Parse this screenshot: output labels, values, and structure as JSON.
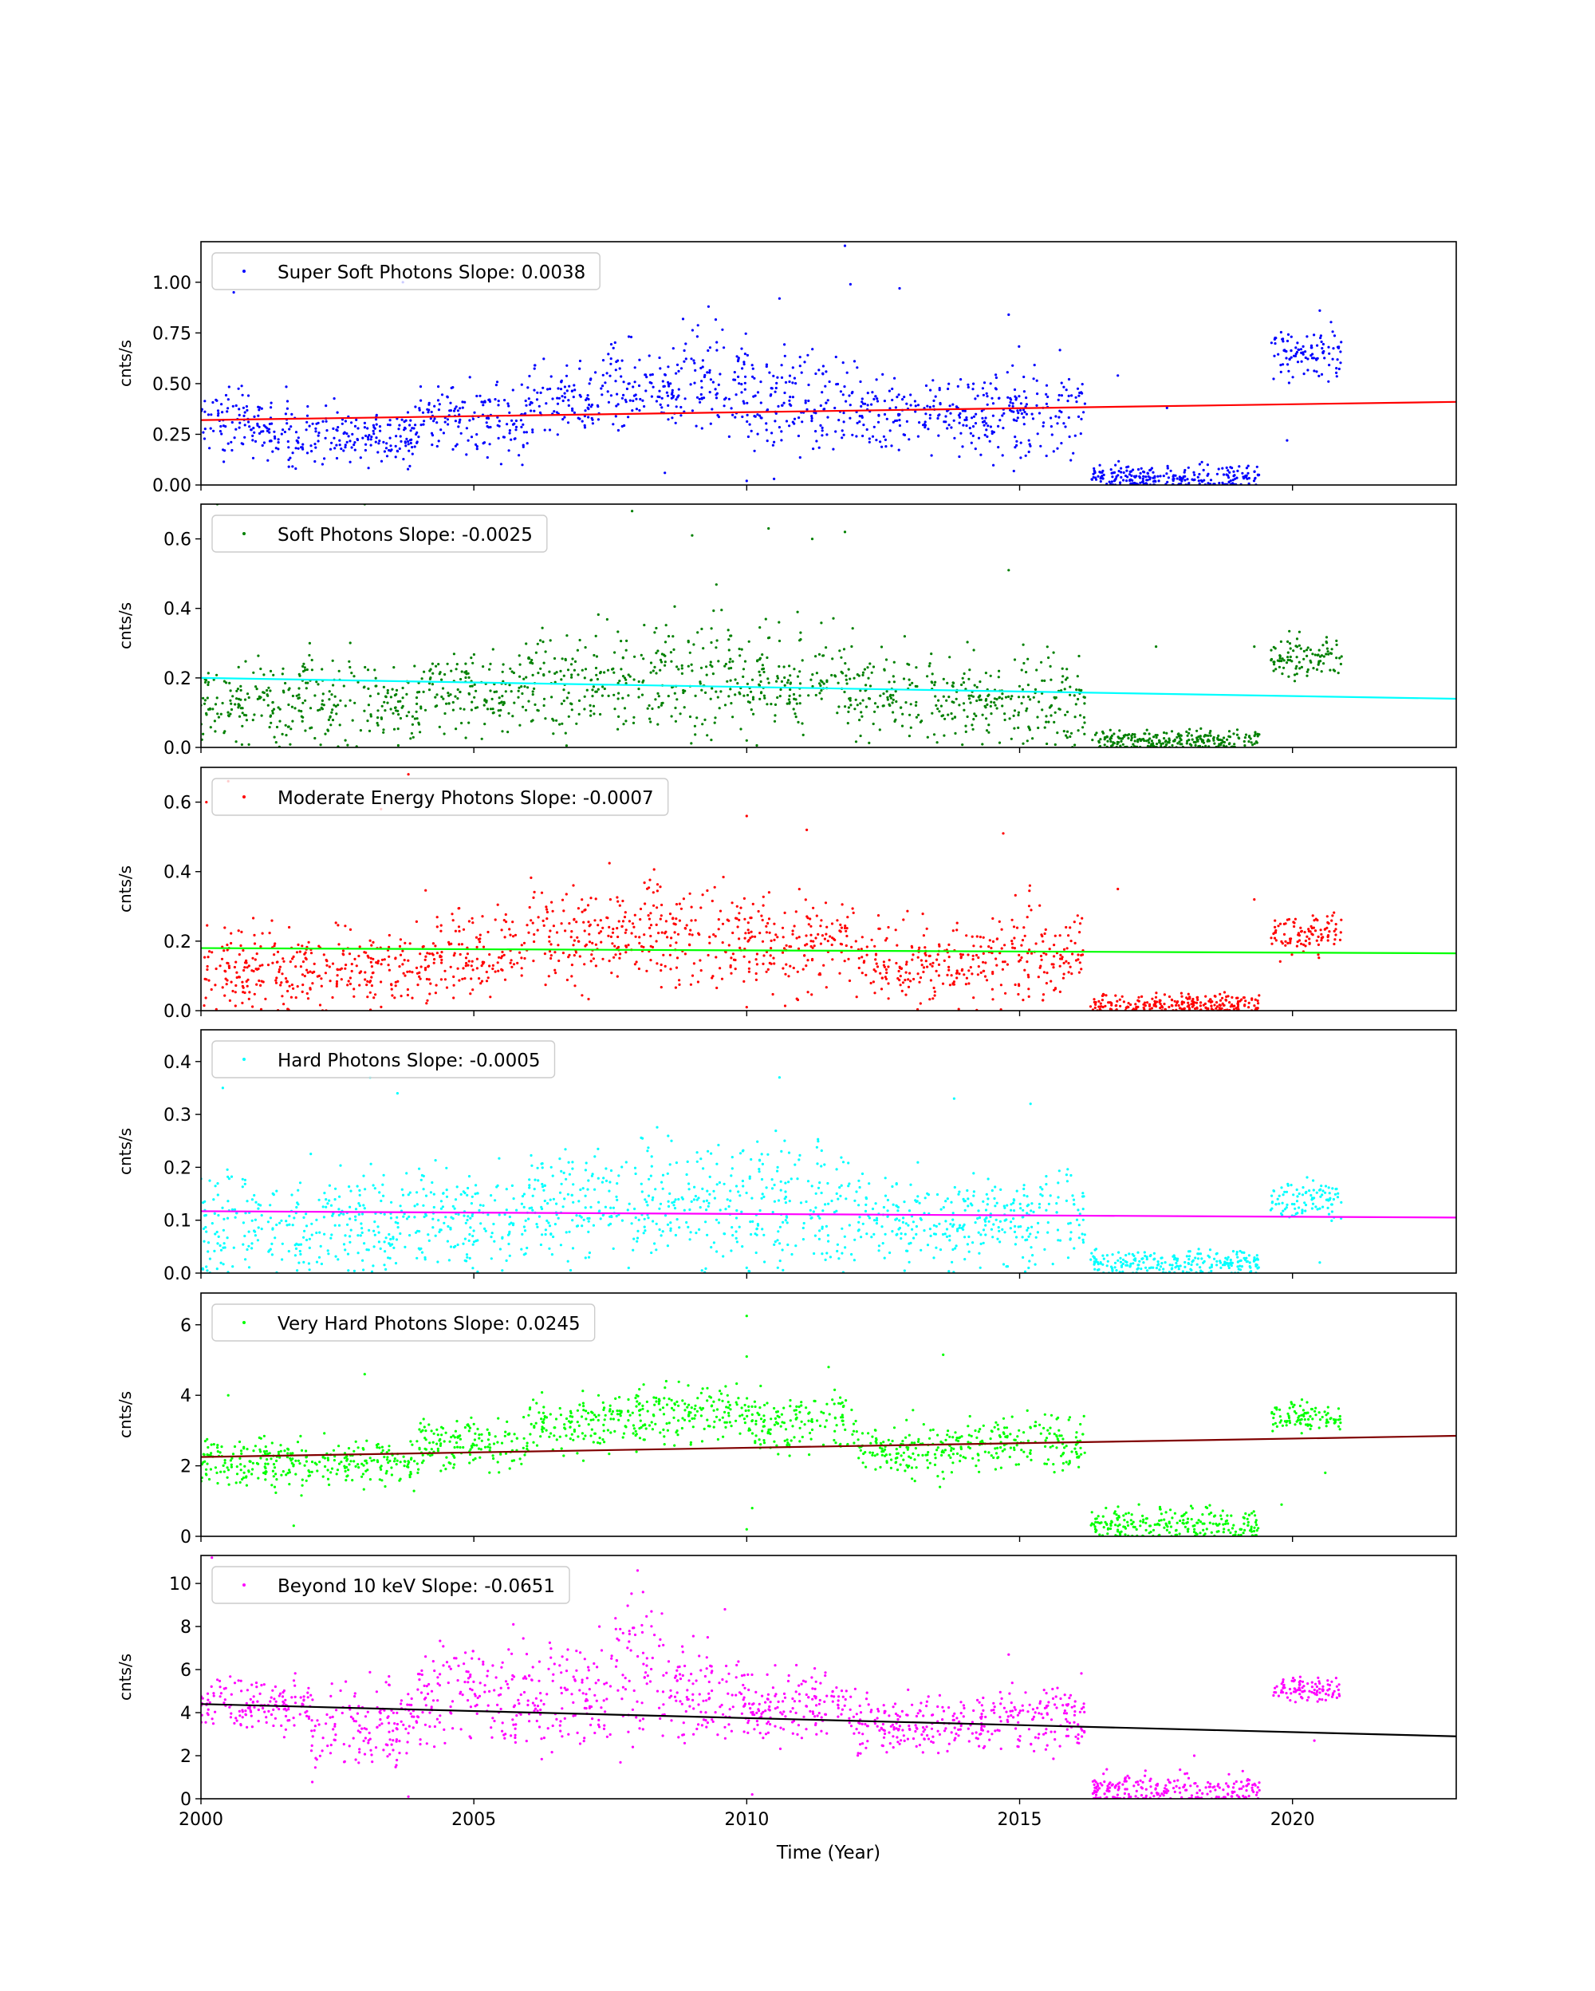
{
  "figure": {
    "xlabel": "Time (Year)",
    "x_ticks": [
      2000,
      2005,
      2010,
      2015,
      2020
    ],
    "xlim": [
      2000,
      2023
    ]
  },
  "chart_data": [
    {
      "type": "scatter",
      "legend": "Super Soft Photons Slope: 0.0038",
      "ylabel": "cnts/s",
      "ylim": [
        0,
        1.2
      ],
      "y_ticks": [
        "0.00",
        "0.25",
        "0.50",
        "0.75",
        "1.00"
      ],
      "point_color": "#0000ff",
      "fit_color": "#ff0000",
      "fit": {
        "x": [
          2000,
          2023
        ],
        "y": [
          0.32,
          0.41
        ]
      },
      "clusters": [
        {
          "x": [
            2000.0,
            2001.6
          ],
          "center": 0.3,
          "spread": 0.08
        },
        {
          "x": [
            2001.6,
            2004.0
          ],
          "center": 0.24,
          "spread": 0.07
        },
        {
          "x": [
            2004.0,
            2006.0
          ],
          "center": 0.33,
          "spread": 0.09
        },
        {
          "x": [
            2006.0,
            2007.2
          ],
          "center": 0.4,
          "spread": 0.09
        },
        {
          "x": [
            2007.2,
            2008.8
          ],
          "center": 0.48,
          "spread": 0.1
        },
        {
          "x": [
            2008.8,
            2010.0
          ],
          "center": 0.52,
          "spread": 0.12
        },
        {
          "x": [
            2010.0,
            2012.0
          ],
          "center": 0.42,
          "spread": 0.12
        },
        {
          "x": [
            2012.0,
            2014.5
          ],
          "center": 0.35,
          "spread": 0.1
        },
        {
          "x": [
            2014.5,
            2016.2
          ],
          "center": 0.36,
          "spread": 0.11
        },
        {
          "x": [
            2016.3,
            2019.4
          ],
          "center": 0.04,
          "spread": 0.03
        },
        {
          "x": [
            2019.6,
            2020.9
          ],
          "center": 0.63,
          "spread": 0.07
        }
      ],
      "outliers": [
        {
          "x": 2000.6,
          "y": 0.95
        },
        {
          "x": 2003.7,
          "y": 1.0
        },
        {
          "x": 2011.8,
          "y": 1.18
        },
        {
          "x": 2011.9,
          "y": 0.99
        },
        {
          "x": 2009.3,
          "y": 0.88
        },
        {
          "x": 2014.8,
          "y": 0.84
        },
        {
          "x": 2010.6,
          "y": 0.92
        },
        {
          "x": 2012.8,
          "y": 0.97
        },
        {
          "x": 2016.8,
          "y": 0.54
        },
        {
          "x": 2017.7,
          "y": 0.38
        },
        {
          "x": 2010.0,
          "y": 0.02
        },
        {
          "x": 2010.5,
          "y": 0.03
        },
        {
          "x": 2020.5,
          "y": 0.86
        },
        {
          "x": 2019.9,
          "y": 0.22
        },
        {
          "x": 2008.5,
          "y": 0.06
        }
      ]
    },
    {
      "type": "scatter",
      "legend": "Soft Photons Slope: -0.0025",
      "ylabel": "cnts/s",
      "ylim": [
        0,
        0.7
      ],
      "y_ticks": [
        "0.0",
        "0.2",
        "0.4",
        "0.6"
      ],
      "point_color": "#008000",
      "fit_color": "#00ffff",
      "fit": {
        "x": [
          2000,
          2023
        ],
        "y": [
          0.2,
          0.14
        ]
      },
      "clusters": [
        {
          "x": [
            2000.0,
            2004.0
          ],
          "center": 0.13,
          "spread": 0.06
        },
        {
          "x": [
            2004.0,
            2006.0
          ],
          "center": 0.16,
          "spread": 0.06
        },
        {
          "x": [
            2006.0,
            2008.0
          ],
          "center": 0.19,
          "spread": 0.07
        },
        {
          "x": [
            2008.0,
            2010.0
          ],
          "center": 0.21,
          "spread": 0.09
        },
        {
          "x": [
            2010.0,
            2012.0
          ],
          "center": 0.19,
          "spread": 0.08
        },
        {
          "x": [
            2012.0,
            2014.5
          ],
          "center": 0.14,
          "spread": 0.06
        },
        {
          "x": [
            2014.5,
            2016.2
          ],
          "center": 0.14,
          "spread": 0.07
        },
        {
          "x": [
            2016.3,
            2019.4
          ],
          "center": 0.02,
          "spread": 0.015
        },
        {
          "x": [
            2019.6,
            2020.9
          ],
          "center": 0.26,
          "spread": 0.03
        }
      ],
      "outliers": [
        {
          "x": 2000.3,
          "y": 0.7
        },
        {
          "x": 2003.0,
          "y": 0.7
        },
        {
          "x": 2007.9,
          "y": 0.68
        },
        {
          "x": 2009.0,
          "y": 0.61
        },
        {
          "x": 2010.4,
          "y": 0.63
        },
        {
          "x": 2011.2,
          "y": 0.6
        },
        {
          "x": 2011.8,
          "y": 0.62
        },
        {
          "x": 2014.8,
          "y": 0.51
        },
        {
          "x": 2017.5,
          "y": 0.29
        },
        {
          "x": 2019.3,
          "y": 0.29
        },
        {
          "x": 2010.0,
          "y": 0.02
        }
      ]
    },
    {
      "type": "scatter",
      "legend": "Moderate Energy Photons Slope: -0.0007",
      "ylabel": "cnts/s",
      "ylim": [
        0,
        0.7
      ],
      "y_ticks": [
        "0.0",
        "0.2",
        "0.4",
        "0.6"
      ],
      "point_color": "#ff0000",
      "fit_color": "#00ff00",
      "fit": {
        "x": [
          2000,
          2023
        ],
        "y": [
          0.18,
          0.165
        ]
      },
      "clusters": [
        {
          "x": [
            2000.0,
            2004.0
          ],
          "center": 0.12,
          "spread": 0.06
        },
        {
          "x": [
            2004.0,
            2006.0
          ],
          "center": 0.17,
          "spread": 0.06
        },
        {
          "x": [
            2006.0,
            2008.0
          ],
          "center": 0.21,
          "spread": 0.07
        },
        {
          "x": [
            2008.0,
            2010.0
          ],
          "center": 0.22,
          "spread": 0.08
        },
        {
          "x": [
            2010.0,
            2012.0
          ],
          "center": 0.19,
          "spread": 0.07
        },
        {
          "x": [
            2012.0,
            2014.5
          ],
          "center": 0.14,
          "spread": 0.06
        },
        {
          "x": [
            2014.5,
            2016.2
          ],
          "center": 0.16,
          "spread": 0.07
        },
        {
          "x": [
            2016.3,
            2019.4
          ],
          "center": 0.02,
          "spread": 0.015
        },
        {
          "x": [
            2019.6,
            2020.9
          ],
          "center": 0.22,
          "spread": 0.03
        }
      ],
      "outliers": [
        {
          "x": 2000.5,
          "y": 0.66
        },
        {
          "x": 2000.1,
          "y": 0.6
        },
        {
          "x": 2003.8,
          "y": 0.68
        },
        {
          "x": 2003.3,
          "y": 0.58
        },
        {
          "x": 2010.0,
          "y": 0.56
        },
        {
          "x": 2011.1,
          "y": 0.52
        },
        {
          "x": 2014.7,
          "y": 0.51
        },
        {
          "x": 2016.8,
          "y": 0.35
        },
        {
          "x": 2019.3,
          "y": 0.32
        },
        {
          "x": 2010.0,
          "y": 0.01
        }
      ]
    },
    {
      "type": "scatter",
      "legend": "Hard Photons Slope: -0.0005",
      "ylabel": "cnts/s",
      "ylim": [
        0,
        0.46
      ],
      "y_ticks": [
        "0.0",
        "0.1",
        "0.2",
        "0.3",
        "0.4"
      ],
      "point_color": "#00ffff",
      "fit_color": "#ff00ff",
      "fit": {
        "x": [
          2000,
          2023
        ],
        "y": [
          0.117,
          0.105
        ]
      },
      "clusters": [
        {
          "x": [
            2000.0,
            2004.0
          ],
          "center": 0.09,
          "spread": 0.05
        },
        {
          "x": [
            2004.0,
            2006.0
          ],
          "center": 0.1,
          "spread": 0.05
        },
        {
          "x": [
            2006.0,
            2008.0
          ],
          "center": 0.13,
          "spread": 0.05
        },
        {
          "x": [
            2008.0,
            2010.0
          ],
          "center": 0.14,
          "spread": 0.06
        },
        {
          "x": [
            2010.0,
            2012.0
          ],
          "center": 0.13,
          "spread": 0.06
        },
        {
          "x": [
            2012.0,
            2014.5
          ],
          "center": 0.1,
          "spread": 0.04
        },
        {
          "x": [
            2014.5,
            2016.2
          ],
          "center": 0.1,
          "spread": 0.05
        },
        {
          "x": [
            2016.3,
            2019.4
          ],
          "center": 0.02,
          "spread": 0.012
        },
        {
          "x": [
            2019.6,
            2020.9
          ],
          "center": 0.14,
          "spread": 0.02
        }
      ],
      "outliers": [
        {
          "x": 2000.4,
          "y": 0.35
        },
        {
          "x": 2003.1,
          "y": 0.37
        },
        {
          "x": 2003.6,
          "y": 0.34
        },
        {
          "x": 2010.6,
          "y": 0.37
        },
        {
          "x": 2015.2,
          "y": 0.32
        },
        {
          "x": 2013.8,
          "y": 0.33
        },
        {
          "x": 2010.0,
          "y": 0.01
        },
        {
          "x": 2020.5,
          "y": 0.02
        }
      ]
    },
    {
      "type": "scatter",
      "legend": "Very Hard Photons Slope: 0.0245",
      "ylabel": "cnts/s",
      "ylim": [
        0,
        6.9
      ],
      "y_ticks": [
        "0",
        "2",
        "4",
        "6"
      ],
      "point_color": "#00ff00",
      "fit_color": "#800000",
      "fit": {
        "x": [
          2000,
          2023
        ],
        "y": [
          2.25,
          2.85
        ]
      },
      "clusters": [
        {
          "x": [
            2000.0,
            2004.0
          ],
          "center": 2.1,
          "spread": 0.35
        },
        {
          "x": [
            2004.0,
            2006.0
          ],
          "center": 2.6,
          "spread": 0.35
        },
        {
          "x": [
            2006.0,
            2008.0
          ],
          "center": 3.2,
          "spread": 0.4
        },
        {
          "x": [
            2008.0,
            2010.0
          ],
          "center": 3.5,
          "spread": 0.4
        },
        {
          "x": [
            2010.0,
            2012.0
          ],
          "center": 3.2,
          "spread": 0.4
        },
        {
          "x": [
            2012.0,
            2014.5
          ],
          "center": 2.5,
          "spread": 0.4
        },
        {
          "x": [
            2014.5,
            2016.2
          ],
          "center": 2.7,
          "spread": 0.4
        },
        {
          "x": [
            2016.3,
            2019.4
          ],
          "center": 0.35,
          "spread": 0.25
        },
        {
          "x": [
            2019.6,
            2020.9
          ],
          "center": 3.4,
          "spread": 0.2
        }
      ],
      "outliers": [
        {
          "x": 2010.0,
          "y": 6.25
        },
        {
          "x": 2010.0,
          "y": 5.1
        },
        {
          "x": 2013.6,
          "y": 5.15
        },
        {
          "x": 2011.5,
          "y": 4.8
        },
        {
          "x": 2003.0,
          "y": 4.6
        },
        {
          "x": 2000.5,
          "y": 4.0
        },
        {
          "x": 2010.0,
          "y": 0.2
        },
        {
          "x": 2010.1,
          "y": 0.8
        },
        {
          "x": 2001.7,
          "y": 0.3
        },
        {
          "x": 2019.8,
          "y": 0.9
        },
        {
          "x": 2020.6,
          "y": 1.8
        }
      ]
    },
    {
      "type": "scatter",
      "legend": "Beyond 10 keV Slope: -0.0651",
      "ylabel": "cnts/s",
      "ylim": [
        0,
        11.3
      ],
      "y_ticks": [
        "0",
        "2",
        "4",
        "6",
        "8",
        "10"
      ],
      "point_color": "#ff00ff",
      "fit_color": "#000000",
      "fit": {
        "x": [
          2000,
          2023
        ],
        "y": [
          4.4,
          2.9
        ]
      },
      "clusters": [
        {
          "x": [
            2000.0,
            2002.0
          ],
          "center": 4.3,
          "spread": 0.6
        },
        {
          "x": [
            2002.0,
            2004.0
          ],
          "center": 3.5,
          "spread": 1.0
        },
        {
          "x": [
            2004.0,
            2006.0
          ],
          "center": 4.8,
          "spread": 1.2
        },
        {
          "x": [
            2006.0,
            2007.5
          ],
          "center": 4.8,
          "spread": 1.3
        },
        {
          "x": [
            2007.5,
            2008.5
          ],
          "center": 6.0,
          "spread": 1.6
        },
        {
          "x": [
            2008.5,
            2010.0
          ],
          "center": 4.8,
          "spread": 1.1
        },
        {
          "x": [
            2010.0,
            2012.0
          ],
          "center": 4.3,
          "spread": 0.8
        },
        {
          "x": [
            2012.0,
            2014.5
          ],
          "center": 3.4,
          "spread": 0.6
        },
        {
          "x": [
            2014.5,
            2016.2
          ],
          "center": 3.8,
          "spread": 0.7
        },
        {
          "x": [
            2016.3,
            2019.4
          ],
          "center": 0.4,
          "spread": 0.35
        },
        {
          "x": [
            2019.6,
            2020.9
          ],
          "center": 5.1,
          "spread": 0.3
        }
      ],
      "outliers": [
        {
          "x": 2000.2,
          "y": 11.2
        },
        {
          "x": 2008.0,
          "y": 10.6
        },
        {
          "x": 2008.1,
          "y": 9.6
        },
        {
          "x": 2009.6,
          "y": 8.8
        },
        {
          "x": 2007.3,
          "y": 8.0
        },
        {
          "x": 2014.8,
          "y": 6.7
        },
        {
          "x": 2018.2,
          "y": 2.0
        },
        {
          "x": 2010.1,
          "y": 0.2
        },
        {
          "x": 2003.8,
          "y": 0.1
        },
        {
          "x": 2020.4,
          "y": 2.7
        }
      ]
    }
  ]
}
